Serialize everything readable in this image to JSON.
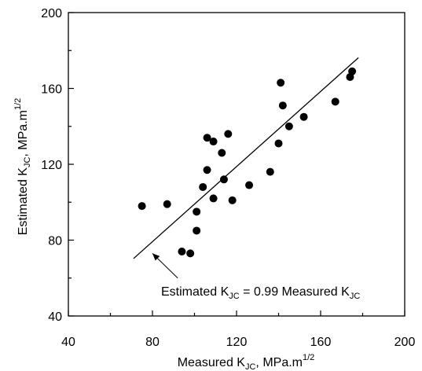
{
  "chart_data": {
    "type": "scatter",
    "title": "",
    "xlabel": "Measured K_JC, MPa.m^1/2",
    "ylabel": "Estimated K_JC, MPa.m^1/2",
    "xlabel_parts": {
      "pre": "Measured K",
      "sub": "JC",
      "post": ", MPa.m",
      "sup": "1/2"
    },
    "ylabel_parts": {
      "pre": "Estimated K",
      "sub": "JC",
      "post": ", MPa.m",
      "sup": "1/2"
    },
    "xlim": [
      40,
      200
    ],
    "ylim": [
      40,
      200
    ],
    "x_ticks": [
      "40",
      "80",
      "120",
      "160",
      "200"
    ],
    "y_ticks": [
      "40",
      "80",
      "120",
      "160",
      "200"
    ],
    "x_tick_values": [
      40,
      80,
      120,
      160,
      200
    ],
    "y_tick_values": [
      40,
      80,
      120,
      160,
      200
    ],
    "minor_step": 20,
    "grid": false,
    "legend": "none",
    "marker_color": "#000000",
    "line_color": "#000000",
    "points": [
      {
        "x": 75,
        "y": 98
      },
      {
        "x": 87,
        "y": 99
      },
      {
        "x": 94,
        "y": 74
      },
      {
        "x": 98,
        "y": 73
      },
      {
        "x": 101,
        "y": 95
      },
      {
        "x": 101,
        "y": 85
      },
      {
        "x": 104,
        "y": 108
      },
      {
        "x": 106,
        "y": 117
      },
      {
        "x": 106,
        "y": 134
      },
      {
        "x": 109,
        "y": 132
      },
      {
        "x": 109,
        "y": 102
      },
      {
        "x": 113,
        "y": 126
      },
      {
        "x": 114,
        "y": 112
      },
      {
        "x": 116,
        "y": 136
      },
      {
        "x": 118,
        "y": 101
      },
      {
        "x": 126,
        "y": 109
      },
      {
        "x": 136,
        "y": 116
      },
      {
        "x": 140,
        "y": 131
      },
      {
        "x": 141,
        "y": 163
      },
      {
        "x": 142,
        "y": 151
      },
      {
        "x": 145,
        "y": 140
      },
      {
        "x": 152,
        "y": 145
      },
      {
        "x": 167,
        "y": 153
      },
      {
        "x": 174,
        "y": 166
      },
      {
        "x": 175,
        "y": 169
      }
    ],
    "fit_line": {
      "slope": 0.99,
      "x_range": [
        71,
        178
      ]
    },
    "annotation": {
      "parts": {
        "a": "Estimated K",
        "b": "JC",
        "c": " = 0.99 Measured K",
        "d": "JC"
      },
      "arrow_from": [
        92,
        60
      ],
      "arrow_to": [
        80,
        73
      ]
    }
  }
}
